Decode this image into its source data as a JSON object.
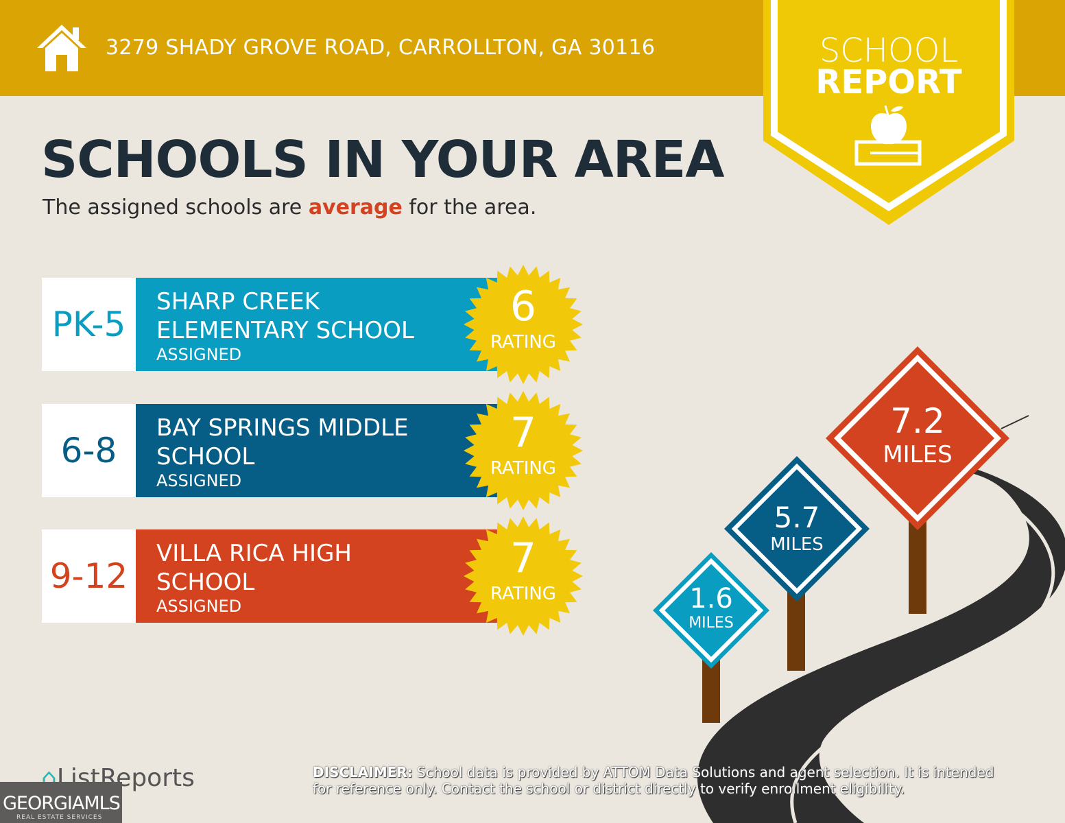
{
  "header": {
    "address": "3279 SHADY GROVE ROAD, CARROLLTON, GA 30116",
    "icon": "home-icon"
  },
  "badge": {
    "line1": "SCHOOL",
    "line2": "REPORT",
    "icon": "apple-on-book-icon"
  },
  "title": "SCHOOLS IN YOUR AREA",
  "subtitle": {
    "before": "The assigned schools are ",
    "highlight": "average",
    "after": " for the area."
  },
  "schools": [
    {
      "grades": "PK-5",
      "name_line1": "SHARP CREEK",
      "name_line2": "ELEMENTARY SCHOOL",
      "status": "ASSIGNED",
      "rating": "6",
      "rating_label": "RATING",
      "color": "#0a9dc2"
    },
    {
      "grades": "6-8",
      "name_line1": "BAY SPRINGS MIDDLE",
      "name_line2": "SCHOOL",
      "status": "ASSIGNED",
      "rating": "7",
      "rating_label": "RATING",
      "color": "#065e86"
    },
    {
      "grades": "9-12",
      "name_line1": "VILLA RICA HIGH",
      "name_line2": "SCHOOL",
      "status": "ASSIGNED",
      "rating": "7",
      "rating_label": "RATING",
      "color": "#d44320"
    }
  ],
  "distances": [
    {
      "value": "1.6",
      "unit": "MILES",
      "color": "#0a9dc2"
    },
    {
      "value": "5.7",
      "unit": "MILES",
      "color": "#065e86"
    },
    {
      "value": "7.2",
      "unit": "MILES",
      "color": "#d44320"
    }
  ],
  "footer": {
    "brand": "ListReports",
    "mls_name": "GEORGIAMLS",
    "mls_tagline": "REAL ESTATE SERVICES",
    "disclaimer_label": "DISCLAIMER:",
    "disclaimer": " School data is provided by ATTOM Data Solutions and agent selection. It is intended for reference only. Contact the school or district directly to verify enrollment eligibility."
  },
  "colors": {
    "header": "#d9a404",
    "badge": "#efc806",
    "background": "#ebe7df",
    "title": "#1f2d38",
    "highlight": "#d44320"
  }
}
